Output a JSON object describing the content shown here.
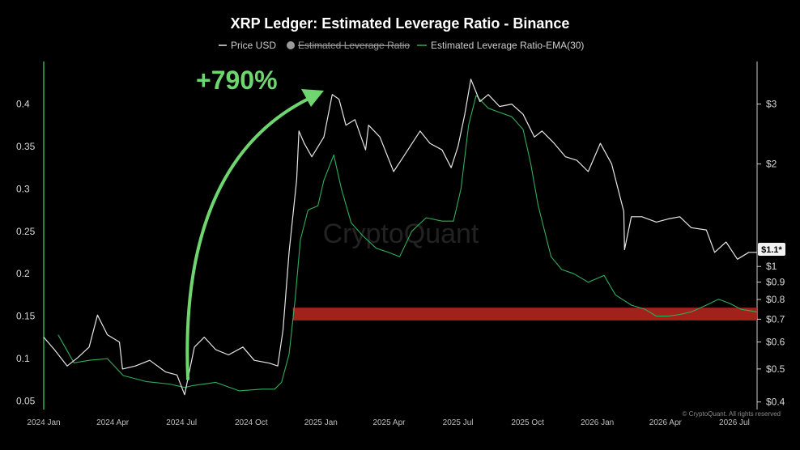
{
  "colors": {
    "background": "#000000",
    "price": "#e6e6e6",
    "ema": "#2fae5b",
    "arrow": "#6fd66f",
    "zone": "#b3261e",
    "axis": "#cccccc"
  },
  "chart_data": {
    "type": "line",
    "title": "XRP Ledger: Estimated Leverage Ratio - Binance",
    "legend": [
      {
        "label": "Price USD",
        "style": "line",
        "color": "#e6e6e6",
        "hidden": false
      },
      {
        "label": "Estimated Leverage Ratio",
        "style": "dot",
        "color": "#9a9a9a",
        "hidden": true
      },
      {
        "label": "Estimated Leverage Ratio-EMA(30)",
        "style": "line",
        "color": "#2fae5b",
        "hidden": false
      }
    ],
    "x_ticks": [
      "2024 Jan",
      "2024 Apr",
      "2024 Jul",
      "2024 Oct",
      "2025 Jan",
      "2025 Apr",
      "2025 Jul",
      "2025 Oct",
      "2026 Jan",
      "2026 Apr",
      "2026 Jul"
    ],
    "x_range": [
      "2024-01-01",
      "2026-07-31"
    ],
    "y_left": {
      "ticks": [
        "0.05",
        "0.1",
        "0.15",
        "0.2",
        "0.25",
        "0.3",
        "0.35",
        "0.4"
      ],
      "range": [
        0.04,
        0.45
      ]
    },
    "y_right": {
      "scale": "log",
      "ticks": [
        "$0.4",
        "$0.5",
        "$0.6",
        "$0.7",
        "$0.8",
        "$0.9",
        "$1",
        "$2",
        "$3"
      ],
      "range": [
        0.38,
        4.0
      ]
    },
    "current_price_label": "$1.1*",
    "annotation": "+790%",
    "highlight_zone": {
      "y_from": 0.145,
      "y_to": 0.16,
      "x_from": "2024-11-25",
      "x_to": "2026-07-31",
      "color": "#b3261e"
    },
    "series": [
      {
        "name": "Price USD",
        "axis": "right",
        "points": [
          [
            "2024-01-01",
            0.62
          ],
          [
            "2024-01-15",
            0.57
          ],
          [
            "2024-02-01",
            0.51
          ],
          [
            "2024-02-15",
            0.54
          ],
          [
            "2024-03-01",
            0.58
          ],
          [
            "2024-03-12",
            0.72
          ],
          [
            "2024-03-25",
            0.63
          ],
          [
            "2024-04-10",
            0.6
          ],
          [
            "2024-04-14",
            0.5
          ],
          [
            "2024-05-01",
            0.51
          ],
          [
            "2024-05-20",
            0.53
          ],
          [
            "2024-06-10",
            0.49
          ],
          [
            "2024-06-25",
            0.48
          ],
          [
            "2024-07-05",
            0.42
          ],
          [
            "2024-07-18",
            0.58
          ],
          [
            "2024-07-31",
            0.62
          ],
          [
            "2024-08-15",
            0.57
          ],
          [
            "2024-09-01",
            0.55
          ],
          [
            "2024-09-20",
            0.58
          ],
          [
            "2024-10-05",
            0.53
          ],
          [
            "2024-10-25",
            0.52
          ],
          [
            "2024-11-05",
            0.51
          ],
          [
            "2024-11-12",
            0.65
          ],
          [
            "2024-11-20",
            1.1
          ],
          [
            "2024-11-30",
            1.8
          ],
          [
            "2024-12-03",
            2.5
          ],
          [
            "2024-12-10",
            2.3
          ],
          [
            "2024-12-20",
            2.1
          ],
          [
            "2025-01-05",
            2.4
          ],
          [
            "2025-01-16",
            3.2
          ],
          [
            "2025-01-25",
            3.1
          ],
          [
            "2025-02-03",
            2.6
          ],
          [
            "2025-02-15",
            2.7
          ],
          [
            "2025-03-01",
            2.2
          ],
          [
            "2025-03-05",
            2.6
          ],
          [
            "2025-03-20",
            2.4
          ],
          [
            "2025-04-07",
            1.9
          ],
          [
            "2025-04-20",
            2.1
          ],
          [
            "2025-05-12",
            2.5
          ],
          [
            "2025-05-25",
            2.3
          ],
          [
            "2025-06-10",
            2.2
          ],
          [
            "2025-06-22",
            1.95
          ],
          [
            "2025-07-01",
            2.25
          ],
          [
            "2025-07-10",
            2.8
          ],
          [
            "2025-07-18",
            3.55
          ],
          [
            "2025-07-30",
            3.05
          ],
          [
            "2025-08-10",
            3.2
          ],
          [
            "2025-08-25",
            2.95
          ],
          [
            "2025-09-10",
            3.0
          ],
          [
            "2025-09-25",
            2.8
          ],
          [
            "2025-10-10",
            2.4
          ],
          [
            "2025-10-20",
            2.5
          ],
          [
            "2025-11-05",
            2.3
          ],
          [
            "2025-11-20",
            2.1
          ],
          [
            "2025-12-05",
            2.05
          ],
          [
            "2025-12-20",
            1.9
          ],
          [
            "2026-01-05",
            2.3
          ],
          [
            "2026-01-20",
            2.0
          ],
          [
            "2026-02-05",
            1.45
          ],
          [
            "2026-02-06",
            1.12
          ],
          [
            "2026-02-15",
            1.4
          ],
          [
            "2026-03-01",
            1.4
          ],
          [
            "2026-03-20",
            1.35
          ],
          [
            "2026-04-05",
            1.38
          ],
          [
            "2026-04-20",
            1.4
          ],
          [
            "2026-05-05",
            1.3
          ],
          [
            "2026-05-25",
            1.28
          ],
          [
            "2026-06-05",
            1.1
          ],
          [
            "2026-06-20",
            1.18
          ],
          [
            "2026-07-05",
            1.05
          ],
          [
            "2026-07-20",
            1.1
          ],
          [
            "2026-07-31",
            1.1
          ]
        ]
      },
      {
        "name": "Estimated Leverage Ratio-EMA(30)",
        "axis": "left",
        "points": [
          [
            "2024-01-20",
            0.128
          ],
          [
            "2024-02-10",
            0.095
          ],
          [
            "2024-03-01",
            0.098
          ],
          [
            "2024-03-25",
            0.1
          ],
          [
            "2024-04-15",
            0.08
          ],
          [
            "2024-05-15",
            0.073
          ],
          [
            "2024-06-15",
            0.07
          ],
          [
            "2024-07-05",
            0.066
          ],
          [
            "2024-07-15",
            0.068
          ],
          [
            "2024-08-15",
            0.072
          ],
          [
            "2024-09-15",
            0.062
          ],
          [
            "2024-10-15",
            0.064
          ],
          [
            "2024-11-01",
            0.064
          ],
          [
            "2024-11-10",
            0.072
          ],
          [
            "2024-11-20",
            0.105
          ],
          [
            "2024-11-28",
            0.17
          ],
          [
            "2024-12-05",
            0.24
          ],
          [
            "2024-12-15",
            0.275
          ],
          [
            "2024-12-28",
            0.28
          ],
          [
            "2025-01-05",
            0.31
          ],
          [
            "2025-01-18",
            0.34
          ],
          [
            "2025-01-28",
            0.3
          ],
          [
            "2025-02-10",
            0.26
          ],
          [
            "2025-02-25",
            0.245
          ],
          [
            "2025-03-15",
            0.23
          ],
          [
            "2025-04-01",
            0.225
          ],
          [
            "2025-04-15",
            0.22
          ],
          [
            "2025-05-01",
            0.25
          ],
          [
            "2025-05-20",
            0.266
          ],
          [
            "2025-06-10",
            0.262
          ],
          [
            "2025-06-25",
            0.262
          ],
          [
            "2025-07-05",
            0.3
          ],
          [
            "2025-07-15",
            0.375
          ],
          [
            "2025-07-25",
            0.41
          ],
          [
            "2025-08-10",
            0.395
          ],
          [
            "2025-08-25",
            0.39
          ],
          [
            "2025-09-10",
            0.385
          ],
          [
            "2025-09-25",
            0.37
          ],
          [
            "2025-10-05",
            0.33
          ],
          [
            "2025-10-15",
            0.28
          ],
          [
            "2025-11-01",
            0.22
          ],
          [
            "2025-11-15",
            0.205
          ],
          [
            "2025-12-01",
            0.2
          ],
          [
            "2025-12-20",
            0.19
          ],
          [
            "2026-01-10",
            0.198
          ],
          [
            "2026-01-25",
            0.175
          ],
          [
            "2026-02-15",
            0.163
          ],
          [
            "2026-03-05",
            0.158
          ],
          [
            "2026-03-20",
            0.15
          ],
          [
            "2026-04-05",
            0.15
          ],
          [
            "2026-04-20",
            0.152
          ],
          [
            "2026-05-05",
            0.155
          ],
          [
            "2026-05-25",
            0.163
          ],
          [
            "2026-06-10",
            0.17
          ],
          [
            "2026-06-25",
            0.165
          ],
          [
            "2026-07-10",
            0.158
          ],
          [
            "2026-07-31",
            0.155
          ]
        ]
      }
    ]
  },
  "credit": "© CryptoQuant. All rights reserved",
  "watermark": "CryptoQuant"
}
